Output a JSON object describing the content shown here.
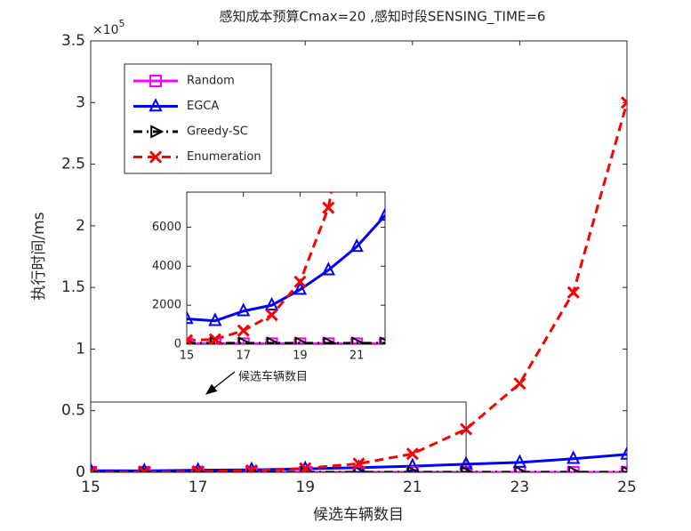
{
  "chart_data": {
    "type": "line",
    "title": "感知成本预算Cmax=20 ,感知时段SENSING_TIME=6",
    "x_label": "候选车辆数目",
    "y_label": "执行时间/ms",
    "y_multiplier": "×10",
    "y_multiplier_exponent": "5",
    "x": [
      15,
      16,
      17,
      18,
      19,
      20,
      21,
      22,
      23,
      24,
      25
    ],
    "xlim": [
      15,
      25
    ],
    "xticks": [
      15,
      17,
      19,
      21,
      23,
      25
    ],
    "ylim": [
      0,
      350000
    ],
    "yticks": [
      {
        "value": 0,
        "label": "0"
      },
      {
        "value": 50000,
        "label": "0.5"
      },
      {
        "value": 100000,
        "label": "1"
      },
      {
        "value": 150000,
        "label": "1.5"
      },
      {
        "value": 200000,
        "label": "2"
      },
      {
        "value": 250000,
        "label": "2.5"
      },
      {
        "value": 300000,
        "label": "3"
      },
      {
        "value": 350000,
        "label": "3.5"
      }
    ],
    "legend": "upper left",
    "series": [
      {
        "name": "Random",
        "color": "#ff00ff",
        "line_style": "solid",
        "marker": "square",
        "values": [
          30,
          30,
          30,
          30,
          30,
          30,
          30,
          30,
          30,
          30,
          30
        ]
      },
      {
        "name": "EGCA",
        "color": "#0000ff",
        "line_style": "solid",
        "marker": "triangle",
        "values": [
          1300,
          1200,
          1700,
          2000,
          2800,
          3800,
          5000,
          6600,
          8000,
          11000,
          14500
        ]
      },
      {
        "name": "Greedy-SC",
        "color": "#000000",
        "line_style": "dashdot",
        "marker": "triangle-right",
        "values": [
          50,
          50,
          50,
          50,
          50,
          50,
          50,
          50,
          50,
          50,
          50
        ]
      },
      {
        "name": "Enumeration",
        "color": "#ff0000",
        "line_style": "dash",
        "marker": "x",
        "values": [
          200,
          250,
          700,
          1500,
          3200,
          7000,
          15000,
          35000,
          72000,
          146000,
          300000
        ]
      }
    ],
    "inset": {
      "xlim": [
        15,
        22
      ],
      "ylim": [
        0,
        7800
      ],
      "xticks": [
        15,
        17,
        19,
        21
      ],
      "yticks": [
        0,
        2000,
        4000,
        6000
      ],
      "zoom_box_ylim": [
        0,
        57000
      ],
      "annotation": "候选车辆数目"
    }
  }
}
